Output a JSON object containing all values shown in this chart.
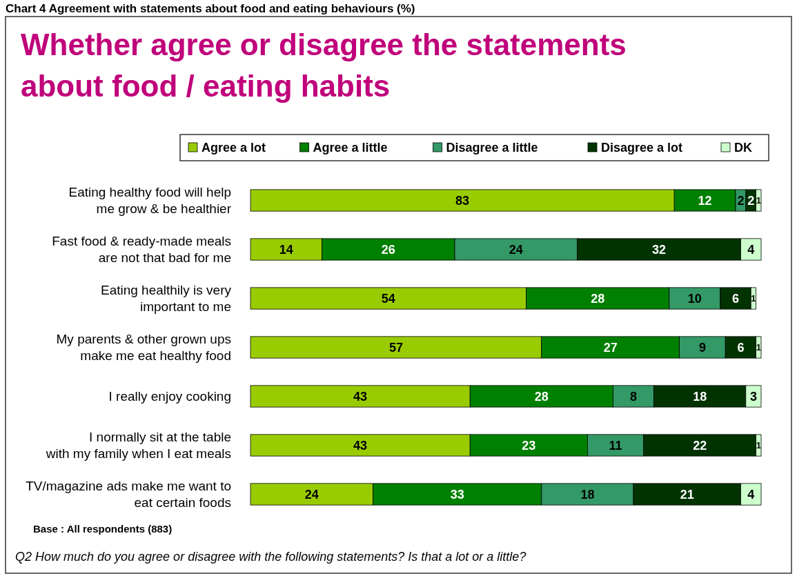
{
  "chart_data": {
    "type": "bar",
    "orientation": "horizontal",
    "stacked": true,
    "data_labels": true,
    "legend": "top",
    "title": "Whether agree or disagree the statements about food / eating habits",
    "subtitle": "Chart 4 Agreement with statements about food and eating behaviours (%)",
    "categories": [
      "Eating healthy food will help me grow & be healthier",
      "Fast food & ready-made meals are not that bad for me",
      "Eating healthily is very important to me",
      "My parents & other grown ups make me eat healthy food",
      "I really enjoy cooking",
      "I normally sit at the table with my family when I eat meals",
      "TV/magazine ads make me want to eat certain foods"
    ],
    "series": [
      {
        "name": "Agree a lot",
        "color": "#99cc00",
        "values": [
          83,
          14,
          54,
          57,
          43,
          43,
          24
        ]
      },
      {
        "name": "Agree a little",
        "color": "#008000",
        "values": [
          12,
          26,
          28,
          27,
          28,
          23,
          33
        ]
      },
      {
        "name": "Disagree a little",
        "color": "#339966",
        "values": [
          2,
          24,
          10,
          9,
          8,
          11,
          18
        ]
      },
      {
        "name": "Disagree a lot",
        "color": "#003300",
        "values": [
          2,
          32,
          6,
          6,
          18,
          22,
          21
        ]
      },
      {
        "name": "DK",
        "color": "#ccffcc",
        "values": [
          1,
          4,
          1,
          1,
          3,
          1,
          4
        ]
      }
    ],
    "annotations": [
      "Base : All respondents (883)",
      "Q2 How much do you agree or disagree with the following statements? Is that a lot or a little?"
    ]
  }
}
